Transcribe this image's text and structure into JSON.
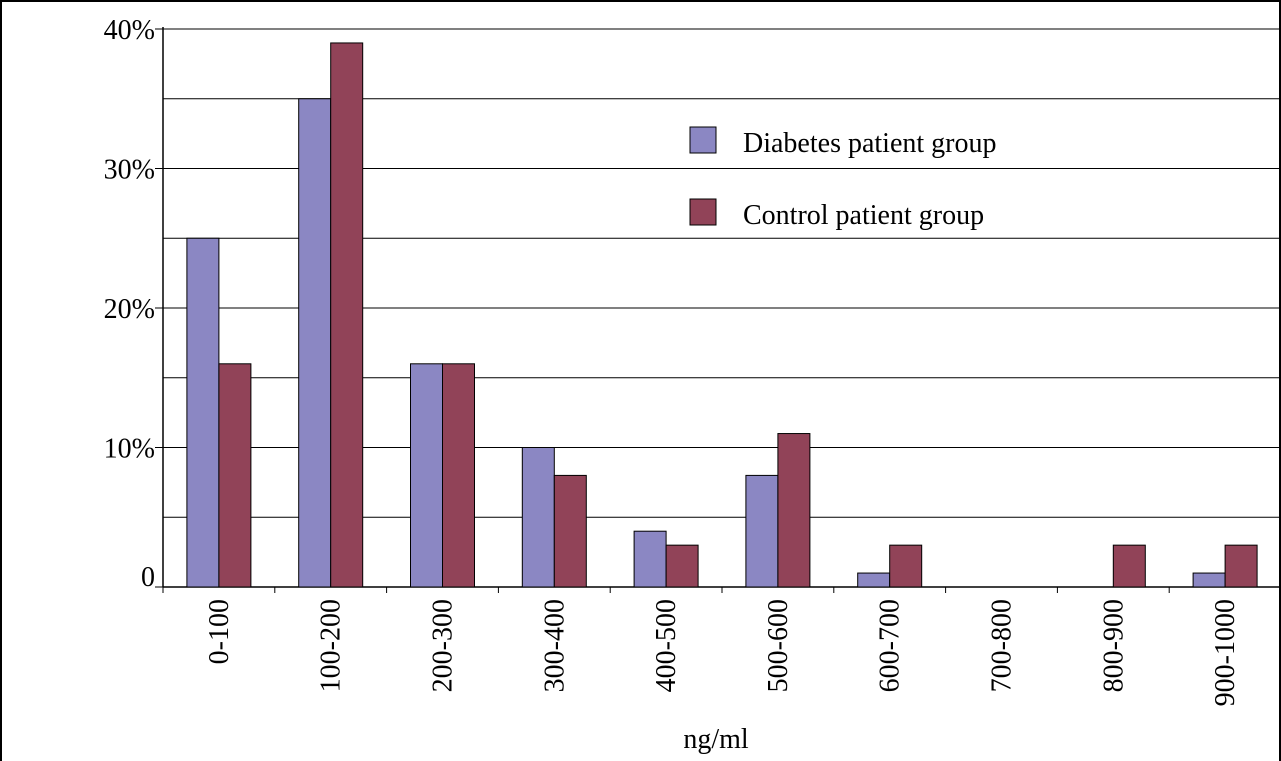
{
  "chart_data": {
    "type": "bar",
    "categories": [
      "0-100",
      "100-200",
      "200-300",
      "300-400",
      "400-500",
      "500-600",
      "600-700",
      "700-800",
      "800-900",
      "900-1000"
    ],
    "series": [
      {
        "name": "Diabetes patient group",
        "values": [
          25,
          35,
          16,
          10,
          4,
          8,
          1,
          0,
          0,
          1
        ]
      },
      {
        "name": "Control patient group",
        "values": [
          16,
          39,
          16,
          8,
          3,
          11,
          3,
          0,
          3,
          3
        ]
      }
    ],
    "xlabel": "ng/ml",
    "ylabel": "",
    "ylim": [
      0,
      40
    ],
    "yticks": [
      {
        "value": 0,
        "label": "0"
      },
      {
        "value": 10,
        "label": "10%"
      },
      {
        "value": 20,
        "label": "20%"
      },
      {
        "value": 30,
        "label": "30%"
      },
      {
        "value": 40,
        "label": "40%"
      }
    ],
    "gridlines": [
      5,
      10,
      15,
      20,
      25,
      30,
      35,
      40
    ],
    "grid": true,
    "legend_position": "top-right",
    "colors": [
      "#8b87c3",
      "#914358"
    ]
  }
}
